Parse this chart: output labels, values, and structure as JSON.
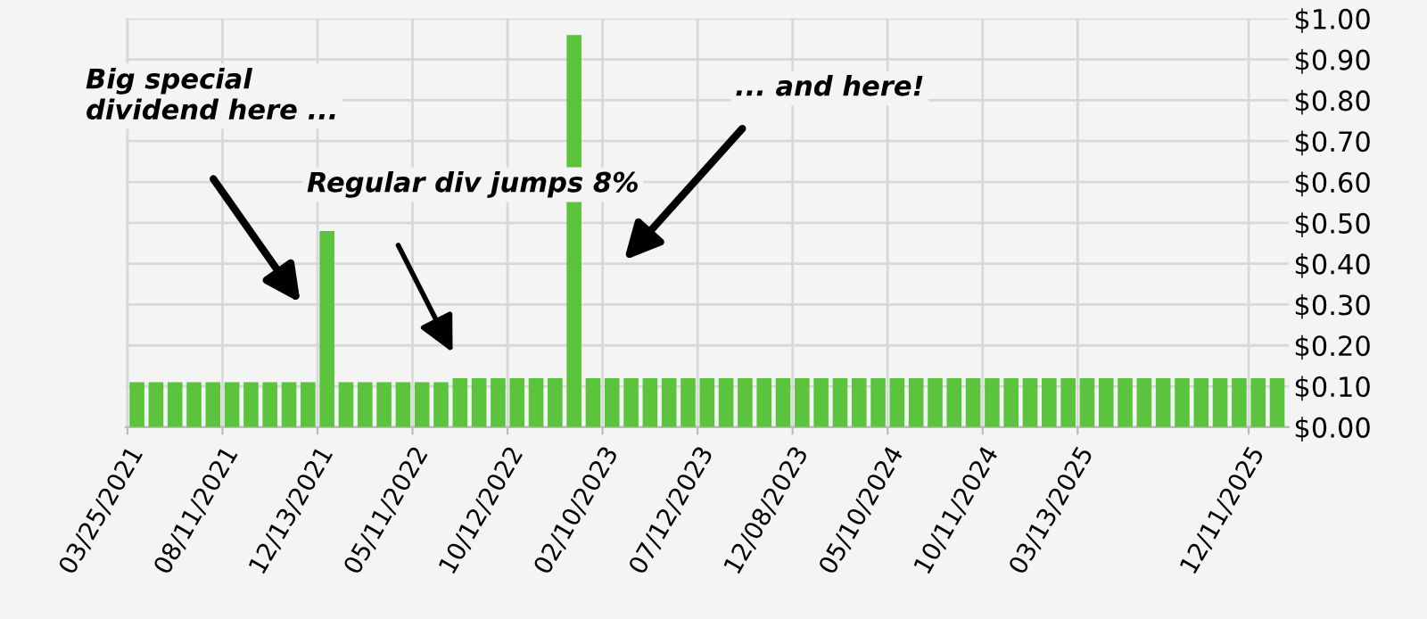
{
  "chart_data": {
    "type": "bar",
    "categories": [
      "03/25/2021",
      null,
      null,
      null,
      null,
      "08/11/2021",
      null,
      null,
      null,
      null,
      "12/13/2021",
      null,
      null,
      null,
      null,
      "05/11/2022",
      null,
      null,
      null,
      null,
      "10/12/2022",
      null,
      null,
      null,
      null,
      "02/10/2023",
      null,
      null,
      null,
      null,
      "07/12/2023",
      null,
      null,
      null,
      null,
      "12/08/2023",
      null,
      null,
      null,
      null,
      "05/10/2024",
      null,
      null,
      null,
      null,
      "10/11/2024",
      null,
      null,
      null,
      null,
      "03/13/2025",
      null,
      null,
      null,
      null,
      null,
      null,
      null,
      null,
      "12/11/2025",
      null
    ],
    "values": [
      0.11,
      0.11,
      0.11,
      0.11,
      0.11,
      0.11,
      0.11,
      0.11,
      0.11,
      0.11,
      0.48,
      0.11,
      0.11,
      0.11,
      0.11,
      0.11,
      0.11,
      0.12,
      0.12,
      0.12,
      0.12,
      0.12,
      0.12,
      0.96,
      0.12,
      0.12,
      0.12,
      0.12,
      0.12,
      0.12,
      0.12,
      0.12,
      0.12,
      0.12,
      0.12,
      0.12,
      0.12,
      0.12,
      0.12,
      0.12,
      0.12,
      0.12,
      0.12,
      0.12,
      0.12,
      0.12,
      0.12,
      0.12,
      0.12,
      0.12,
      0.12,
      0.12,
      0.12,
      0.12,
      0.12,
      0.12,
      0.12,
      0.12,
      0.12,
      0.12,
      0.12
    ],
    "color": "#5cc43c",
    "ylim": [
      0,
      1.0
    ],
    "yticks": [
      {
        "value": 0,
        "label": "$0.00"
      },
      {
        "value": 0.1,
        "label": "$0.10"
      },
      {
        "value": 0.2,
        "label": "$0.20"
      },
      {
        "value": 0.3,
        "label": "$0.30"
      },
      {
        "value": 0.4,
        "label": "$0.40"
      },
      {
        "value": 0.5,
        "label": "$0.50"
      },
      {
        "value": 0.6,
        "label": "$0.60"
      },
      {
        "value": 0.7,
        "label": "$0.70"
      },
      {
        "value": 0.8,
        "label": "$0.80"
      },
      {
        "value": 0.9,
        "label": "$0.90"
      },
      {
        "value": 1.0,
        "label": "$1.00"
      }
    ],
    "grid": true,
    "annotations": [
      "Big special\ndividend here ...",
      "Regular div jumps 8%",
      "... and here!"
    ]
  }
}
